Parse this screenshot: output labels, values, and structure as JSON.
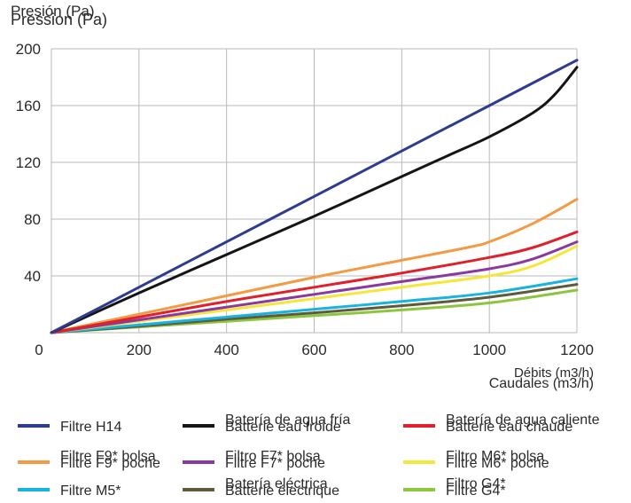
{
  "chart_data": {
    "type": "line",
    "ylabel_es": "Presión (Pa)",
    "ylabel_fr": "Pression (Pa)",
    "xlabel_fr": "Débits (m3/h)",
    "xlabel_es": "Caudales (m3/h)",
    "x_ticks": [
      "0",
      "200",
      "400",
      "600",
      "800",
      "1000",
      "1200"
    ],
    "y_ticks": [
      "40",
      "80",
      "120",
      "160",
      "200"
    ],
    "xlim": [
      0,
      1200
    ],
    "ylim": [
      0,
      200
    ],
    "grid": true,
    "legend_position": "bottom",
    "series": [
      {
        "name_fr": "Filtre H14",
        "name_es": "Filtre H14",
        "color": "#2e3c8f",
        "x": [
          0,
          200,
          400,
          600,
          800,
          1000,
          1200
        ],
        "y": [
          0,
          32,
          64,
          96,
          128,
          160,
          192
        ]
      },
      {
        "name_fr": "Batterie eau froide",
        "name_es": "Batería de agua fría",
        "color": "#151515",
        "x": [
          0,
          200,
          400,
          600,
          800,
          900,
          1000,
          1100,
          1150,
          1200
        ],
        "y": [
          0,
          28,
          55,
          82,
          110,
          124,
          138,
          155,
          168,
          187
        ]
      },
      {
        "name_fr": "Batterie eau chaude",
        "name_es": "Batería de agua caliente",
        "color": "#e0202b",
        "x": [
          0,
          200,
          400,
          600,
          800,
          1000,
          1100,
          1200
        ],
        "y": [
          0,
          11,
          22,
          32,
          42,
          53,
          60,
          71
        ]
      },
      {
        "name_fr": "Filtre F9* poche",
        "name_es": "Filtre F9* bolsa",
        "color": "#f39a43",
        "x": [
          0,
          200,
          400,
          600,
          800,
          950,
          1000,
          1100,
          1200
        ],
        "y": [
          0,
          13,
          26,
          39,
          51,
          60,
          64,
          77,
          94
        ]
      },
      {
        "name_fr": "Filtre F7* poche",
        "name_es": "Filtro F7* bolsa",
        "color": "#8a3a9e",
        "x": [
          0,
          200,
          400,
          600,
          800,
          1000,
          1100,
          1200
        ],
        "y": [
          0,
          9,
          18,
          27,
          36,
          45,
          52,
          64
        ]
      },
      {
        "name_fr": "Filtre M6* poche",
        "name_es": "Filtro M6* bolsa",
        "color": "#f5e63a",
        "x": [
          0,
          200,
          400,
          600,
          800,
          1000,
          1100,
          1200
        ],
        "y": [
          0,
          8,
          16,
          24,
          32,
          40,
          47,
          61
        ]
      },
      {
        "name_fr": "Filtre M5*",
        "name_es": "Filtre M5*",
        "color": "#18b4df",
        "x": [
          0,
          200,
          400,
          600,
          800,
          1000,
          1200
        ],
        "y": [
          0,
          5.5,
          11,
          16.5,
          22,
          28,
          38
        ]
      },
      {
        "name_fr": "Batterie électrique",
        "name_es": "Batería eléctrica",
        "color": "#5e5a3c",
        "x": [
          0,
          200,
          400,
          600,
          800,
          1000,
          1200
        ],
        "y": [
          0,
          4.5,
          9.5,
          14,
          19,
          25,
          34
        ]
      },
      {
        "name_fr": "Filtre G4*",
        "name_es": "Filtro G4*",
        "color": "#8cc63e",
        "x": [
          0,
          200,
          400,
          600,
          800,
          1000,
          1200
        ],
        "y": [
          0,
          4,
          8,
          12,
          16,
          21,
          30
        ]
      }
    ]
  }
}
